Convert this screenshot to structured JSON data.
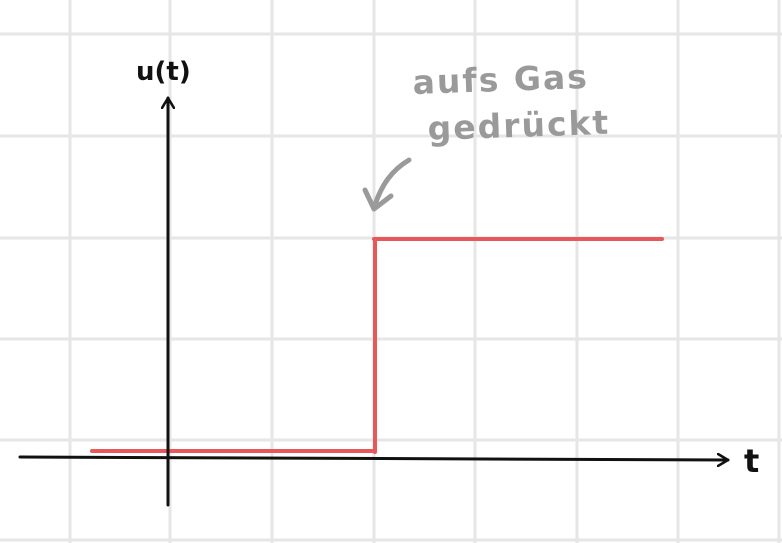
{
  "diagram": {
    "y_axis_label": "u(t)",
    "x_axis_label": "t",
    "annotation": {
      "line1": "aufs Gas",
      "line2": "gedrückt"
    },
    "colors": {
      "grid": "#e6e6e6",
      "axis": "#111111",
      "signal": "#e8585a",
      "annotation": "#9a9a9a"
    },
    "signal": {
      "type": "unit-step",
      "low_level": 0,
      "high_level": 1
    }
  }
}
